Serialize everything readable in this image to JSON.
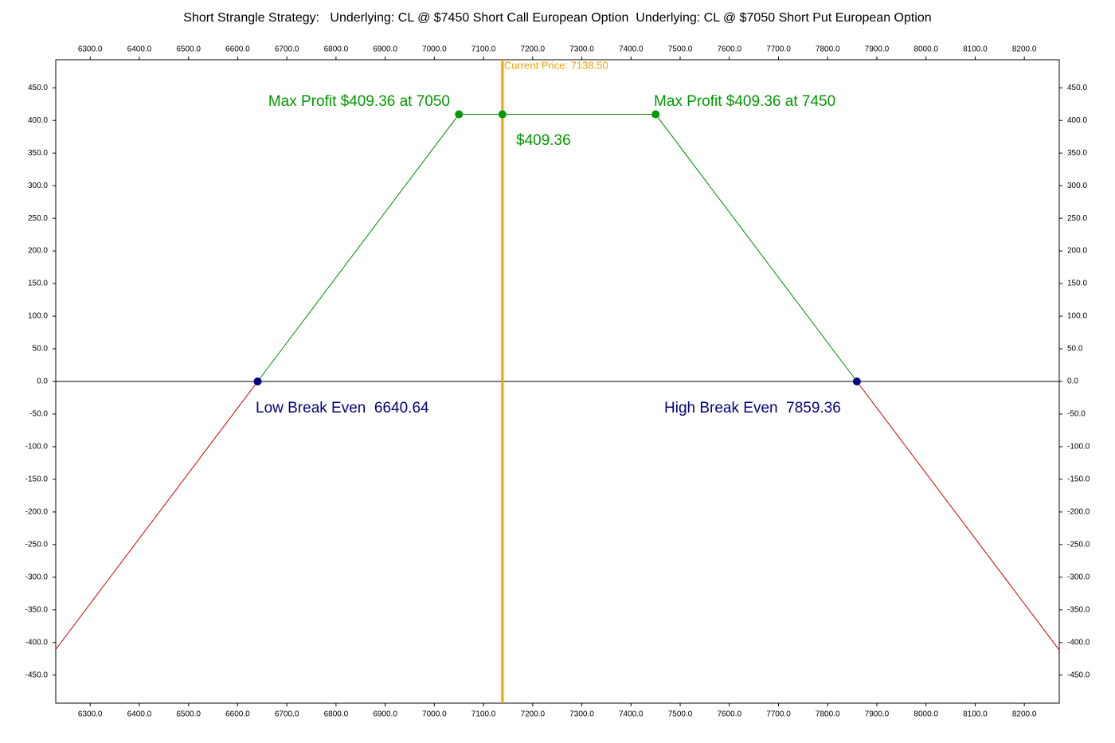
{
  "chart_data": {
    "type": "line",
    "title": "Short Strangle Strategy:   Underlying: CL @ $7450 Short Call European Option  Underlying: CL @ $7050 Short Put European Option",
    "xlim": [
      6230,
      8271
    ],
    "ylim": [
      -493,
      493
    ],
    "xticks": [
      {
        "value": 6300,
        "label": "6300.0"
      },
      {
        "value": 6400,
        "label": "6400.0"
      },
      {
        "value": 6500,
        "label": "6500.0"
      },
      {
        "value": 6600,
        "label": "6600.0"
      },
      {
        "value": 6700,
        "label": "6700.0"
      },
      {
        "value": 6800,
        "label": "6800.0"
      },
      {
        "value": 6900,
        "label": "6900.0"
      },
      {
        "value": 7000,
        "label": "7000.0"
      },
      {
        "value": 7100,
        "label": "7100.0"
      },
      {
        "value": 7200,
        "label": "7200.0"
      },
      {
        "value": 7300,
        "label": "7300.0"
      },
      {
        "value": 7400,
        "label": "7400.0"
      },
      {
        "value": 7500,
        "label": "7500.0"
      },
      {
        "value": 7600,
        "label": "7600.0"
      },
      {
        "value": 7700,
        "label": "7700.0"
      },
      {
        "value": 7800,
        "label": "7800.0"
      },
      {
        "value": 7900,
        "label": "7900.0"
      },
      {
        "value": 8000,
        "label": "8000.0"
      },
      {
        "value": 8100,
        "label": "8100.0"
      },
      {
        "value": 8200,
        "label": "8200.0"
      }
    ],
    "yticks": [
      {
        "value": 450,
        "label": "450.0"
      },
      {
        "value": 400,
        "label": "400.0"
      },
      {
        "value": 350,
        "label": "350.0"
      },
      {
        "value": 300,
        "label": "300.0"
      },
      {
        "value": 250,
        "label": "250.0"
      },
      {
        "value": 200,
        "label": "200.0"
      },
      {
        "value": 150,
        "label": "150.0"
      },
      {
        "value": 100,
        "label": "100.0"
      },
      {
        "value": 50,
        "label": "50.0"
      },
      {
        "value": 0,
        "label": "0.0"
      },
      {
        "value": -50,
        "label": "-50.0"
      },
      {
        "value": -100,
        "label": "-100.0"
      },
      {
        "value": -150,
        "label": "-150.0"
      },
      {
        "value": -200,
        "label": "-200.0"
      },
      {
        "value": -250,
        "label": "-250.0"
      },
      {
        "value": -300,
        "label": "-300.0"
      },
      {
        "value": -350,
        "label": "-350.0"
      },
      {
        "value": -400,
        "label": "-400.0"
      },
      {
        "value": -450,
        "label": "-450.0"
      }
    ],
    "series": [
      {
        "color": "#008800",
        "x": [
          6640.64,
          7050,
          7450,
          7859.36
        ],
        "values": [
          0,
          409.36,
          409.36,
          0
        ]
      },
      {
        "color": "#cc0000",
        "x": [
          6230,
          6640.64
        ],
        "values": [
          -410.64,
          0
        ]
      },
      {
        "color": "#cc0000",
        "x": [
          7859.36,
          8271
        ],
        "values": [
          0,
          -411.64
        ]
      }
    ],
    "points": [
      {
        "x": 7050,
        "y": 409.36,
        "color": "#009900"
      },
      {
        "x": 7138.5,
        "y": 409.36,
        "color": "#009900"
      },
      {
        "x": 7450,
        "y": 409.36,
        "color": "#009900"
      },
      {
        "x": 6640.64,
        "y": 0,
        "color": "#000080"
      },
      {
        "x": 7859.36,
        "y": 0,
        "color": "#000080"
      }
    ],
    "current_price": {
      "value": 7138.5,
      "label": "Current Price: 7138.50",
      "color": "#f5a000"
    },
    "annotations": [
      {
        "text": "Max Profit $409.36 at 7050",
        "color": "#009900"
      },
      {
        "text": "Max Profit $409.36 at 7450",
        "color": "#009900"
      },
      {
        "text": "$409.36",
        "color": "#009900"
      },
      {
        "text": "Low Break Even  6640.64",
        "color": "#000080"
      },
      {
        "text": "High Break Even  7859.36",
        "color": "#000080"
      }
    ]
  }
}
